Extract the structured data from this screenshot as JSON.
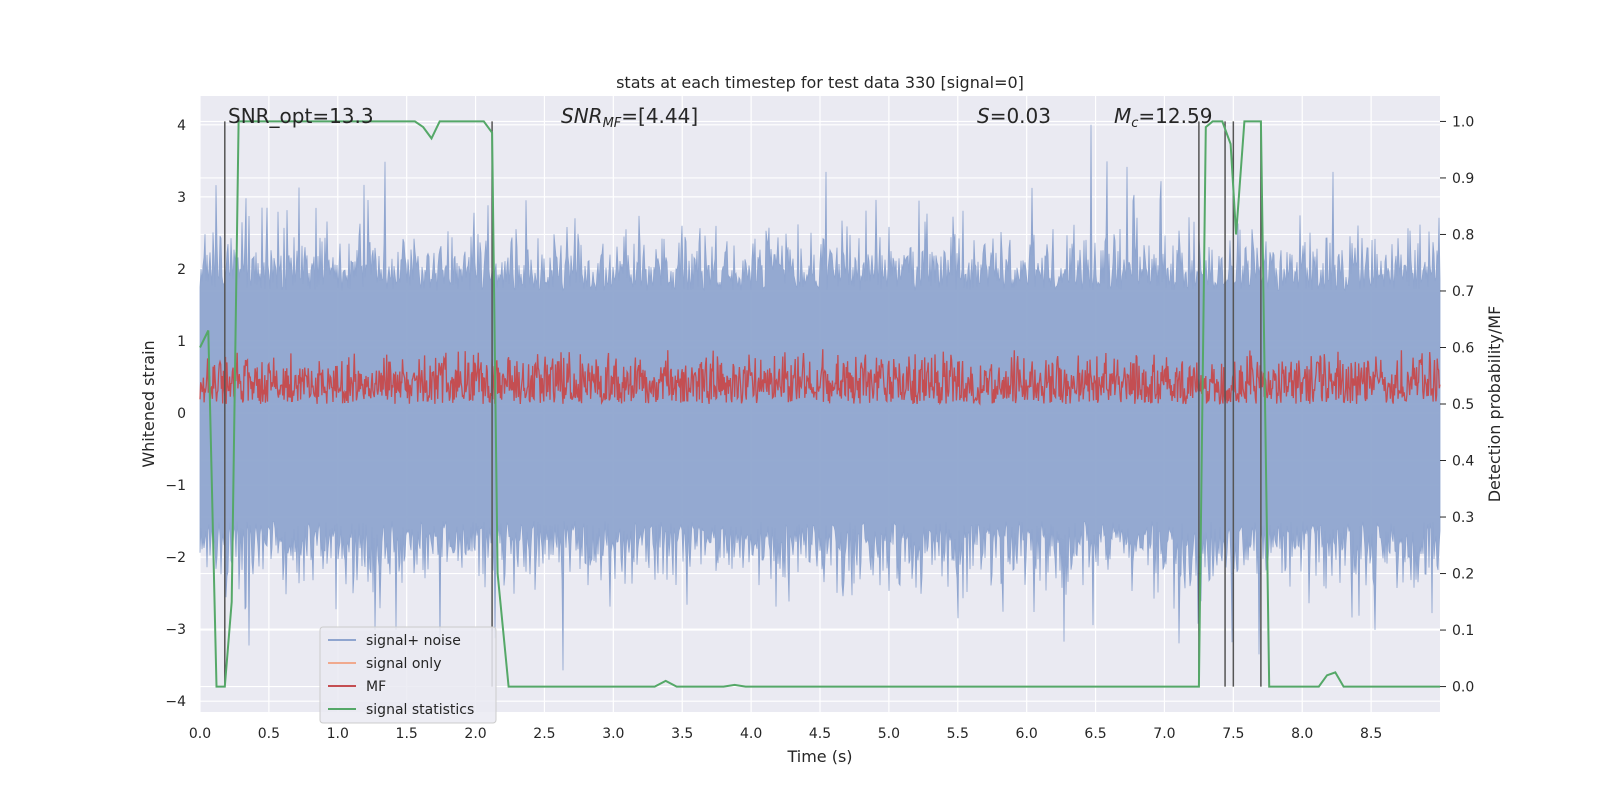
{
  "chart_data": {
    "type": "line",
    "title": "stats at each timestep for test data 330 [signal=0]",
    "xlabel": "Time (s)",
    "ylabel_left": "Whitened strain",
    "ylabel_right": "Detection probability/MF",
    "xlim": [
      0.0,
      9.0
    ],
    "ylim_left": [
      -4.15,
      4.4
    ],
    "ylim_right": [
      -0.045,
      1.045
    ],
    "x_ticks": [
      0.0,
      0.5,
      1.0,
      1.5,
      2.0,
      2.5,
      3.0,
      3.5,
      4.0,
      4.5,
      5.0,
      5.5,
      6.0,
      6.5,
      7.0,
      7.5,
      8.0,
      8.5
    ],
    "x_tick_labels": [
      "0.0",
      "0.5",
      "1.0",
      "1.5",
      "2.0",
      "2.5",
      "3.0",
      "3.5",
      "4.0",
      "4.5",
      "5.0",
      "5.5",
      "6.0",
      "6.5",
      "7.0",
      "7.5",
      "8.0",
      "8.5"
    ],
    "y_ticks_left": [
      4,
      3,
      2,
      1,
      0,
      -1,
      -2,
      -3,
      -4
    ],
    "y_tick_labels_left": [
      "4",
      "3",
      "2",
      "1",
      "0",
      "−1",
      "−2",
      "−3",
      "−4"
    ],
    "y_ticks_right": [
      1.0,
      0.9,
      0.8,
      0.7,
      0.6,
      0.5,
      0.4,
      0.3,
      0.2,
      0.1,
      0.0
    ],
    "y_tick_labels_right": [
      "1.0",
      "0.9",
      "0.8",
      "0.7",
      "0.6",
      "0.5",
      "0.4",
      "0.3",
      "0.2",
      "0.1",
      "0.0"
    ],
    "grid": true,
    "legend_position": "lower-left",
    "annotations": {
      "snr_opt": "SNR_opt=13.3",
      "snr_mf_main": "SNR",
      "snr_mf_sub": "MF",
      "snr_mf_tail": "=[4.44]",
      "s_var": "S",
      "s_tail": "=0.03",
      "mc_var": "M",
      "mc_sub": "c",
      "mc_tail": "=12.59"
    },
    "series": [
      {
        "name": "signal+ noise",
        "color": "#8fa5cf",
        "axis": "left",
        "style": "noise band",
        "envelope_typical": [
          -1.5,
          1.7
        ],
        "envelope_extreme": [
          -3.8,
          4.0
        ]
      },
      {
        "name": "signal only",
        "color": "#f0a98e",
        "axis": "left",
        "values": []
      },
      {
        "name": "MF",
        "color": "#c44e52",
        "axis": "right",
        "style": "noise band",
        "range": [
          0.5,
          0.6
        ]
      },
      {
        "name": "signal statistics",
        "color": "#55a868",
        "axis": "right",
        "x": [
          0.0,
          0.06,
          0.12,
          0.18,
          0.23,
          0.28,
          1.5,
          1.56,
          1.62,
          1.68,
          1.74,
          1.8,
          2.0,
          2.06,
          2.12,
          2.16,
          2.24,
          3.3,
          3.38,
          3.46,
          3.8,
          3.88,
          3.96,
          7.25,
          7.3,
          7.35,
          7.42,
          7.48,
          7.52,
          7.58,
          7.64,
          7.7,
          7.76,
          8.12,
          8.18,
          8.24,
          8.3,
          8.36,
          9.0
        ],
        "values": [
          0.6,
          0.63,
          0.0,
          0.0,
          0.15,
          1.0,
          1.0,
          1.0,
          0.99,
          0.97,
          1.0,
          1.0,
          1.0,
          1.0,
          0.98,
          0.2,
          0.0,
          0.0,
          0.01,
          0.0,
          0.0,
          0.003,
          0.0,
          0.0,
          0.99,
          1.0,
          1.0,
          0.96,
          0.8,
          1.0,
          1.0,
          1.0,
          0.0,
          0.0,
          0.02,
          0.025,
          0.0,
          0.0,
          0.0
        ]
      }
    ],
    "vertical_markers_s": [
      0.18,
      2.12,
      7.25,
      7.44,
      7.5,
      7.7
    ]
  }
}
